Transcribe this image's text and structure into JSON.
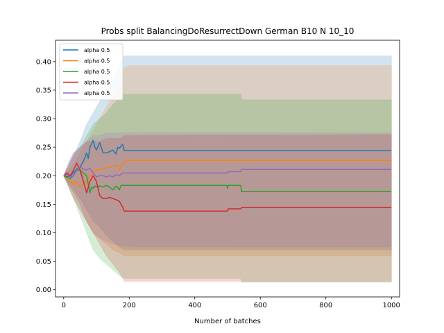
{
  "chart_data": {
    "type": "line",
    "title": "Probs split BalancingDoResurrectDown German B10 N 10_10",
    "xlabel": "Number of batches",
    "ylabel": "",
    "xlim": [
      -25,
      1025
    ],
    "ylim": [
      -0.0125,
      0.4375
    ],
    "x_ticks": [
      0,
      200,
      400,
      600,
      800,
      1000
    ],
    "x_tick_labels": [
      "0",
      "200",
      "400",
      "600",
      "800",
      "1000"
    ],
    "y_ticks": [
      0.0,
      0.05,
      0.1,
      0.15,
      0.2,
      0.25,
      0.3,
      0.35,
      0.4
    ],
    "y_tick_labels": [
      "0.00",
      "0.05",
      "0.10",
      "0.15",
      "0.20",
      "0.25",
      "0.30",
      "0.35",
      "0.40"
    ],
    "grid": false,
    "legend_position": "upper-left",
    "series": [
      {
        "name": "alpha 0.5",
        "color": "#1f77b4",
        "points": [
          [
            0,
            0.2
          ],
          [
            10,
            0.198
          ],
          [
            20,
            0.2
          ],
          [
            30,
            0.205
          ],
          [
            40,
            0.212
          ],
          [
            50,
            0.215
          ],
          [
            60,
            0.225
          ],
          [
            70,
            0.24
          ],
          [
            75,
            0.23
          ],
          [
            80,
            0.25
          ],
          [
            90,
            0.262
          ],
          [
            95,
            0.25
          ],
          [
            100,
            0.245
          ],
          [
            110,
            0.258
          ],
          [
            120,
            0.24
          ],
          [
            130,
            0.24
          ],
          [
            140,
            0.242
          ],
          [
            150,
            0.245
          ],
          [
            160,
            0.238
          ],
          [
            165,
            0.25
          ],
          [
            170,
            0.248
          ],
          [
            175,
            0.252
          ],
          [
            180,
            0.255
          ],
          [
            185,
            0.244
          ],
          [
            200,
            0.244
          ],
          [
            500,
            0.244
          ],
          [
            540,
            0.244
          ],
          [
            1000,
            0.244
          ]
        ],
        "band": [
          [
            0,
            0.2,
            0.2
          ],
          [
            15,
            0.185,
            0.215
          ],
          [
            30,
            0.175,
            0.235
          ],
          [
            50,
            0.16,
            0.26
          ],
          [
            70,
            0.14,
            0.29
          ],
          [
            90,
            0.12,
            0.31
          ],
          [
            110,
            0.11,
            0.33
          ],
          [
            130,
            0.095,
            0.35
          ],
          [
            150,
            0.085,
            0.37
          ],
          [
            170,
            0.075,
            0.39
          ],
          [
            185,
            0.07,
            0.41
          ],
          [
            200,
            0.07,
            0.41
          ],
          [
            1000,
            0.07,
            0.41
          ]
        ]
      },
      {
        "name": "alpha 0.5",
        "color": "#ff7f0e",
        "points": [
          [
            0,
            0.2
          ],
          [
            10,
            0.195
          ],
          [
            20,
            0.19
          ],
          [
            30,
            0.185
          ],
          [
            40,
            0.19
          ],
          [
            50,
            0.18
          ],
          [
            60,
            0.185
          ],
          [
            70,
            0.19
          ],
          [
            80,
            0.2
          ],
          [
            90,
            0.205
          ],
          [
            100,
            0.21
          ],
          [
            120,
            0.212
          ],
          [
            140,
            0.215
          ],
          [
            160,
            0.218
          ],
          [
            170,
            0.21
          ],
          [
            180,
            0.22
          ],
          [
            190,
            0.227
          ],
          [
            200,
            0.227
          ],
          [
            500,
            0.227
          ],
          [
            540,
            0.227
          ],
          [
            1000,
            0.227
          ]
        ],
        "band": [
          [
            0,
            0.2,
            0.2
          ],
          [
            15,
            0.18,
            0.21
          ],
          [
            30,
            0.16,
            0.22
          ],
          [
            50,
            0.14,
            0.24
          ],
          [
            70,
            0.12,
            0.26
          ],
          [
            90,
            0.1,
            0.28
          ],
          [
            110,
            0.09,
            0.3
          ],
          [
            130,
            0.08,
            0.32
          ],
          [
            150,
            0.07,
            0.34
          ],
          [
            170,
            0.065,
            0.36
          ],
          [
            185,
            0.06,
            0.39
          ],
          [
            200,
            0.06,
            0.393
          ],
          [
            1000,
            0.06,
            0.393
          ]
        ]
      },
      {
        "name": "alpha 0.5",
        "color": "#2ca02c",
        "points": [
          [
            0,
            0.2
          ],
          [
            10,
            0.197
          ],
          [
            20,
            0.195
          ],
          [
            30,
            0.2
          ],
          [
            40,
            0.21
          ],
          [
            50,
            0.21
          ],
          [
            60,
            0.205
          ],
          [
            70,
            0.2
          ],
          [
            80,
            0.17
          ],
          [
            85,
            0.18
          ],
          [
            90,
            0.178
          ],
          [
            95,
            0.182
          ],
          [
            100,
            0.18
          ],
          [
            110,
            0.182
          ],
          [
            120,
            0.18
          ],
          [
            130,
            0.183
          ],
          [
            140,
            0.18
          ],
          [
            150,
            0.175
          ],
          [
            160,
            0.182
          ],
          [
            170,
            0.175
          ],
          [
            175,
            0.183
          ],
          [
            180,
            0.183
          ],
          [
            200,
            0.183
          ],
          [
            498,
            0.183
          ],
          [
            500,
            0.178
          ],
          [
            502,
            0.183
          ],
          [
            540,
            0.183
          ],
          [
            543,
            0.172
          ],
          [
            1000,
            0.172
          ]
        ],
        "band": [
          [
            0,
            0.2,
            0.2
          ],
          [
            15,
            0.18,
            0.22
          ],
          [
            30,
            0.16,
            0.235
          ],
          [
            50,
            0.13,
            0.25
          ],
          [
            70,
            0.1,
            0.27
          ],
          [
            90,
            0.07,
            0.29
          ],
          [
            110,
            0.055,
            0.3
          ],
          [
            130,
            0.045,
            0.31
          ],
          [
            150,
            0.035,
            0.325
          ],
          [
            170,
            0.025,
            0.335
          ],
          [
            185,
            0.02,
            0.343
          ],
          [
            200,
            0.02,
            0.343
          ],
          [
            540,
            0.02,
            0.343
          ],
          [
            543,
            0.013,
            0.333
          ],
          [
            1000,
            0.013,
            0.333
          ]
        ]
      },
      {
        "name": "alpha 0.5",
        "color": "#d62728",
        "points": [
          [
            0,
            0.2
          ],
          [
            10,
            0.205
          ],
          [
            20,
            0.2
          ],
          [
            30,
            0.21
          ],
          [
            40,
            0.222
          ],
          [
            50,
            0.21
          ],
          [
            60,
            0.19
          ],
          [
            70,
            0.17
          ],
          [
            80,
            0.19
          ],
          [
            90,
            0.2
          ],
          [
            100,
            0.19
          ],
          [
            110,
            0.165
          ],
          [
            120,
            0.16
          ],
          [
            130,
            0.16
          ],
          [
            140,
            0.162
          ],
          [
            150,
            0.16
          ],
          [
            160,
            0.158
          ],
          [
            170,
            0.155
          ],
          [
            180,
            0.145
          ],
          [
            185,
            0.138
          ],
          [
            200,
            0.138
          ],
          [
            500,
            0.138
          ],
          [
            502,
            0.142
          ],
          [
            540,
            0.142
          ],
          [
            543,
            0.144
          ],
          [
            1000,
            0.144
          ]
        ],
        "band": [
          [
            0,
            0.2,
            0.2
          ],
          [
            15,
            0.185,
            0.22
          ],
          [
            30,
            0.17,
            0.24
          ],
          [
            50,
            0.15,
            0.25
          ],
          [
            70,
            0.12,
            0.26
          ],
          [
            90,
            0.1,
            0.26
          ],
          [
            110,
            0.08,
            0.26
          ],
          [
            130,
            0.06,
            0.265
          ],
          [
            150,
            0.045,
            0.265
          ],
          [
            170,
            0.03,
            0.265
          ],
          [
            185,
            0.015,
            0.27
          ],
          [
            200,
            0.015,
            0.27
          ],
          [
            1000,
            0.015,
            0.272
          ]
        ]
      },
      {
        "name": "alpha 0.5",
        "color": "#9467bd",
        "points": [
          [
            0,
            0.2
          ],
          [
            10,
            0.202
          ],
          [
            20,
            0.198
          ],
          [
            30,
            0.2
          ],
          [
            40,
            0.21
          ],
          [
            50,
            0.215
          ],
          [
            60,
            0.212
          ],
          [
            70,
            0.21
          ],
          [
            80,
            0.213
          ],
          [
            90,
            0.205
          ],
          [
            100,
            0.198
          ],
          [
            110,
            0.2
          ],
          [
            120,
            0.2
          ],
          [
            130,
            0.198
          ],
          [
            140,
            0.2
          ],
          [
            150,
            0.198
          ],
          [
            160,
            0.202
          ],
          [
            170,
            0.2
          ],
          [
            180,
            0.205
          ],
          [
            190,
            0.205
          ],
          [
            200,
            0.205
          ],
          [
            500,
            0.205
          ],
          [
            502,
            0.207
          ],
          [
            540,
            0.207
          ],
          [
            543,
            0.211
          ],
          [
            1000,
            0.211
          ]
        ],
        "band": [
          [
            0,
            0.2,
            0.2
          ],
          [
            15,
            0.18,
            0.225
          ],
          [
            30,
            0.16,
            0.24
          ],
          [
            50,
            0.14,
            0.25
          ],
          [
            70,
            0.12,
            0.26
          ],
          [
            90,
            0.1,
            0.27
          ],
          [
            110,
            0.09,
            0.27
          ],
          [
            130,
            0.085,
            0.275
          ],
          [
            150,
            0.08,
            0.275
          ],
          [
            170,
            0.078,
            0.275
          ],
          [
            185,
            0.076,
            0.275
          ],
          [
            200,
            0.076,
            0.275
          ],
          [
            1000,
            0.075,
            0.275
          ]
        ]
      }
    ]
  }
}
